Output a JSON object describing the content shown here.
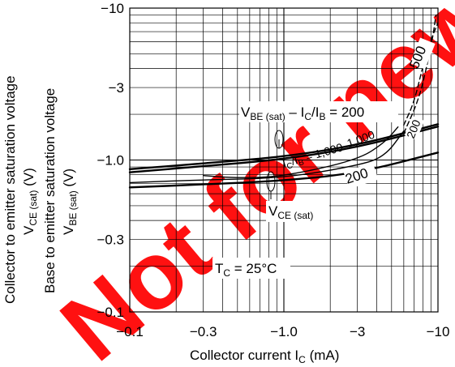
{
  "chart_data": {
    "type": "line",
    "title": "",
    "xlabel": {
      "text": "Collector current  I",
      "sub": "C",
      "unit": "  (mA)"
    },
    "ylabel": {
      "line1": "Collector to emitter saturation voltage",
      "line2": {
        "text": "V",
        "sub": "CE (sat)",
        "unit": "  (V)"
      },
      "line3": "Base to emitter saturation voltage",
      "line4": {
        "text": "V",
        "sub": "BE (sat)",
        "unit": "  (V)"
      }
    },
    "x_scale": "log",
    "y_scale": "log",
    "xlim": [
      -0.1,
      -10
    ],
    "ylim": [
      -0.1,
      -10
    ],
    "x_ticks": [
      {
        "value": -0.1,
        "label": "−0.1"
      },
      {
        "value": -0.3,
        "label": "−0.3"
      },
      {
        "value": -1.0,
        "label": "−1.0"
      },
      {
        "value": -3,
        "label": "−3"
      },
      {
        "value": -10,
        "label": "−10"
      }
    ],
    "y_ticks": [
      {
        "value": -10,
        "label": "−10"
      },
      {
        "value": -3,
        "label": "−3"
      },
      {
        "value": -1.0,
        "label": "−1.0"
      },
      {
        "value": -0.3,
        "label": "−0.3"
      },
      {
        "value": -0.1,
        "label": "−0.1"
      }
    ],
    "grid": true,
    "series": [
      {
        "group": "VBE(sat)",
        "ratio": "200",
        "style": "solid",
        "points": [
          [
            -0.1,
            -0.87
          ],
          [
            -0.3,
            -0.95
          ],
          [
            -1.0,
            -1.05
          ],
          [
            -3.0,
            -1.25
          ],
          [
            -10,
            -1.72
          ]
        ]
      },
      {
        "group": "VBE(sat)",
        "ratio": "1,000",
        "style": "solid",
        "points": [
          [
            -0.1,
            -0.83
          ],
          [
            -0.3,
            -0.91
          ],
          [
            -1.0,
            -1.01
          ],
          [
            -3.0,
            -1.21
          ],
          [
            -10,
            -1.66
          ]
        ]
      },
      {
        "group": "VCE(sat)",
        "ratio": "200",
        "style": "solid",
        "points": [
          [
            -0.1,
            -0.66
          ],
          [
            -0.3,
            -0.69
          ],
          [
            -1.0,
            -0.73
          ],
          [
            -3.0,
            -0.82
          ],
          [
            -10,
            -1.12
          ]
        ]
      },
      {
        "group": "VCE(sat)",
        "ratio": "1,000 (lower)",
        "style": "solid",
        "points": [
          [
            -0.1,
            -0.71
          ],
          [
            -0.3,
            -0.74
          ],
          [
            -1.0,
            -0.76
          ],
          [
            -3.0,
            -0.92
          ],
          [
            -4.5,
            -1.05
          ],
          [
            -6.0,
            -1.55
          ]
        ]
      },
      {
        "group": "VCE(sat)",
        "ratio": "1,000 (upper)",
        "style": "solid",
        "points": [
          [
            -0.3,
            -0.79
          ],
          [
            -0.5,
            -0.76
          ],
          [
            -1.0,
            -0.78
          ],
          [
            -3.0,
            -1.0
          ],
          [
            -4.5,
            -1.3
          ],
          [
            -5.5,
            -1.65
          ]
        ]
      },
      {
        "group": "VCE(sat)",
        "ratio": "500",
        "style": "dashed",
        "points": [
          [
            -6.0,
            -1.7
          ],
          [
            -7.0,
            -2.4
          ],
          [
            -8.0,
            -4.2
          ],
          [
            -9.0,
            -6.2
          ],
          [
            -10,
            -8.0
          ]
        ]
      },
      {
        "group": "VCE(sat)",
        "ratio": "200",
        "style": "dashed",
        "points": [
          [
            -6.0,
            -1.5
          ],
          [
            -7.5,
            -2.5
          ],
          [
            -8.5,
            -4.2
          ],
          [
            -9.3,
            -6.6
          ],
          [
            -9.7,
            -9.0
          ]
        ]
      }
    ],
    "annotations": {
      "vbe": {
        "text": "V",
        "sub": "BE (sat)",
        "rest": " – I",
        "sub2": "C",
        "rest2": "/I",
        "sub3": "B",
        "rest3": " = 200"
      },
      "ratio_mid": {
        "text": "I",
        "sub": "C",
        "rest": "/I",
        "sub2": "B",
        "rest2": " = 1,000"
      },
      "ratio_1000": "1,000",
      "ratio_200": "200",
      "vce": {
        "text": "V",
        "sub": "CE (sat)"
      },
      "label_500": "500",
      "label_200": "200",
      "temperature": {
        "text": "T",
        "sub": "C",
        "rest": " = 25°C"
      }
    },
    "watermark": "Not for new"
  }
}
